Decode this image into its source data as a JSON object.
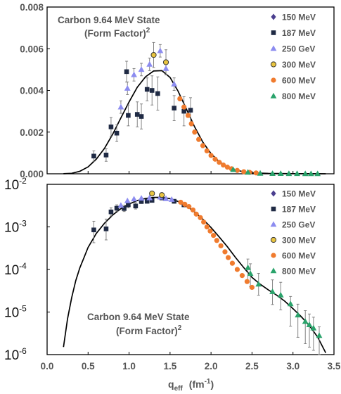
{
  "chart_data": [
    {
      "type": "scatter",
      "title": "Carbon  9.64  MeV State",
      "subtitle": "(Form Factor)",
      "subtitle_sup": "2",
      "xlabel": "q",
      "xlabel_sub": "eff",
      "xlabel_unit": "(fm",
      "xlabel_unit_sup": "-1",
      "xlabel_close": ")",
      "ylabel": "",
      "xlim": [
        0.0,
        3.5
      ],
      "ylim": [
        0.0,
        0.008
      ],
      "yscale": "linear",
      "x_ticks": [
        "0.0",
        "0.5",
        "1.0",
        "1.5",
        "2.0",
        "2.5",
        "3.0",
        "3.5"
      ],
      "y_ticks": [
        "0.000",
        "0.002",
        "0.004",
        "0.006",
        "0.008"
      ],
      "legend_position": "top-right",
      "grid": false,
      "series": [
        {
          "name": "150 MeV",
          "marker": "diamond",
          "color": "#4b3f8f",
          "points": []
        },
        {
          "name": "187 MeV",
          "marker": "square",
          "color": "#1f2a44",
          "points": [
            [
              0.57,
              0.00085,
              0.00025
            ],
            [
              0.72,
              0.0009,
              0.0003
            ],
            [
              0.78,
              0.00225,
              0.00045
            ],
            [
              0.85,
              0.00195,
              0.0004
            ],
            [
              0.97,
              0.0049,
              0.0005
            ],
            [
              0.99,
              0.0028,
              0.0005
            ],
            [
              1.1,
              0.00285,
              0.0006
            ],
            [
              1.15,
              0.00275,
              0.0006
            ],
            [
              1.22,
              0.00405,
              0.00055
            ],
            [
              1.28,
              0.004,
              0.0007
            ],
            [
              1.35,
              0.00385,
              0.0008
            ],
            [
              1.55,
              0.00315,
              0.0006
            ],
            [
              1.67,
              0.003,
              0.0007
            ],
            [
              1.75,
              0.00305,
              0.0006
            ]
          ]
        },
        {
          "name": "250 GeV",
          "marker": "triangle",
          "color": "#8c8cf0",
          "points": [
            [
              0.9,
              0.0032,
              0.0003
            ],
            [
              0.98,
              0.0041,
              0.0003
            ],
            [
              1.06,
              0.00475,
              0.0003
            ],
            [
              1.15,
              0.005,
              0.0003
            ],
            [
              1.25,
              0.00525,
              0.0003
            ],
            [
              1.38,
              0.0059,
              0.0003
            ],
            [
              1.45,
              0.00505,
              0.0003
            ],
            [
              1.55,
              0.0043,
              0.0003
            ]
          ]
        },
        {
          "name": "300 MeV",
          "marker": "circle",
          "color": "#e8c440",
          "points": [
            [
              1.3,
              0.0057,
              0.0006
            ],
            [
              1.45,
              0.00535,
              0.0006
            ]
          ]
        },
        {
          "name": "600 MeV",
          "marker": "circle",
          "color": "#f07b2e",
          "points": [
            [
              1.62,
              0.0036,
              0.0001
            ],
            [
              1.67,
              0.0032,
              0.0001
            ],
            [
              1.72,
              0.0028,
              0.0001
            ],
            [
              1.76,
              0.0024,
              0.0001
            ],
            [
              1.8,
              0.002,
              0.0001
            ],
            [
              1.85,
              0.00165,
              0.0001
            ],
            [
              1.9,
              0.00135,
              0.0001
            ],
            [
              1.95,
              0.0011,
              8e-05
            ],
            [
              2.0,
              0.00088,
              8e-05
            ],
            [
              2.05,
              0.0007,
              8e-05
            ],
            [
              2.1,
              0.00055,
              8e-05
            ],
            [
              2.15,
              0.00042,
              6e-05
            ],
            [
              2.2,
              0.00032,
              6e-05
            ],
            [
              2.25,
              0.00024,
              5e-05
            ],
            [
              2.32,
              0.00016,
              5e-05
            ],
            [
              2.4,
              0.0001,
              4e-05
            ],
            [
              2.47,
              7e-05,
              4e-05
            ],
            [
              2.55,
              4e-05,
              3e-05
            ]
          ]
        },
        {
          "name": "800 MeV",
          "marker": "triangle",
          "color": "#2aa36b",
          "points": [
            [
              2.27,
              0.0002,
              5e-05
            ],
            [
              2.45,
              7e-05,
              3e-05
            ],
            [
              2.6,
              2e-05,
              2e-05
            ],
            [
              2.75,
              1e-05,
              1e-05
            ],
            [
              2.85,
              1e-05,
              1e-05
            ],
            [
              2.95,
              5e-06,
              1e-05
            ],
            [
              3.05,
              4e-06,
              1e-05
            ],
            [
              3.15,
              2e-06,
              1e-05
            ],
            [
              3.22,
              2e-06,
              1e-05
            ],
            [
              3.3,
              1e-06,
              1e-05
            ]
          ]
        }
      ],
      "curve": {
        "x": [
          0.2,
          0.3,
          0.4,
          0.5,
          0.6,
          0.7,
          0.8,
          0.9,
          1.0,
          1.1,
          1.2,
          1.3,
          1.4,
          1.5,
          1.6,
          1.7,
          1.8,
          1.9,
          2.0,
          2.1,
          2.2,
          2.3,
          2.4,
          2.5,
          2.6,
          2.7,
          2.8,
          3.0,
          3.2,
          3.4
        ],
        "y": [
          2e-06,
          2.5e-05,
          0.00012,
          0.00033,
          0.0007,
          0.00122,
          0.0019,
          0.00268,
          0.00345,
          0.00415,
          0.00465,
          0.00493,
          0.00495,
          0.00462,
          0.00395,
          0.0031,
          0.00225,
          0.00152,
          0.00097,
          0.00058,
          0.00033,
          0.00018,
          9.5e-05,
          5.2e-05,
          2.9e-05,
          1.8e-05,
          1.2e-05,
          6e-06,
          3e-06,
          1e-06
        ]
      }
    },
    {
      "type": "scatter",
      "title": "Carbon  9.64  MeV State",
      "subtitle": "(Form Factor)",
      "subtitle_sup": "2",
      "xlabel": "q",
      "xlabel_sub": "eff",
      "xlabel_unit": "(fm",
      "xlabel_unit_sup": "-1",
      "xlabel_close": ")",
      "ylabel": "",
      "xlim": [
        0.0,
        3.5
      ],
      "ylim": [
        1e-06,
        0.01
      ],
      "yscale": "log",
      "x_ticks": [
        "0.0",
        "0.5",
        "1.0",
        "1.5",
        "2.0",
        "2.5",
        "3.0",
        "3.5"
      ],
      "y_ticks": [
        {
          "base": "10",
          "exp": "-2"
        },
        {
          "base": "10",
          "exp": "-3"
        },
        {
          "base": "10",
          "exp": "-4"
        },
        {
          "base": "10",
          "exp": "-5"
        },
        {
          "base": "10",
          "exp": "-6"
        }
      ],
      "legend_position": "top-right",
      "grid": false,
      "series": [
        {
          "name": "150 MeV",
          "marker": "diamond",
          "color": "#4b3f8f",
          "points": []
        },
        {
          "name": "187 MeV",
          "marker": "square",
          "color": "#1f2a44",
          "points": [
            [
              0.57,
              0.00085,
              0.5,
              1.6
            ],
            [
              0.72,
              0.0009,
              0.55,
              1.7
            ],
            [
              0.78,
              0.00225,
              0.8,
              1.25
            ],
            [
              0.85,
              0.00275,
              0.85,
              1.2
            ],
            [
              0.94,
              0.0027,
              0.85,
              1.2
            ],
            [
              0.99,
              0.0033,
              0.85,
              1.2
            ],
            [
              1.08,
              0.0031,
              0.85,
              1.2
            ],
            [
              1.15,
              0.00395,
              0.9,
              1.1
            ],
            [
              1.22,
              0.004,
              0.9,
              1.1
            ],
            [
              1.28,
              0.0042,
              0.9,
              1.1
            ],
            [
              1.4,
              0.0048,
              0.9,
              1.1
            ],
            [
              1.55,
              0.004,
              0.9,
              1.1
            ],
            [
              1.67,
              0.0033,
              0.9,
              1.1
            ]
          ]
        },
        {
          "name": "250 GeV",
          "marker": "triangle",
          "color": "#8c8cf0",
          "points": [
            [
              0.9,
              0.0032
            ],
            [
              0.98,
              0.0041
            ],
            [
              1.06,
              0.0045
            ],
            [
              1.15,
              0.0047
            ],
            [
              1.25,
              0.0048
            ],
            [
              1.38,
              0.005
            ],
            [
              1.45,
              0.0046
            ],
            [
              1.52,
              0.0044
            ]
          ]
        },
        {
          "name": "300 MeV",
          "marker": "circle",
          "color": "#e8c440",
          "points": [
            [
              1.28,
              0.0061
            ],
            [
              1.4,
              0.0056
            ]
          ]
        },
        {
          "name": "600 MeV",
          "marker": "circle",
          "color": "#f07b2e",
          "points": [
            [
              1.63,
              0.0038
            ],
            [
              1.68,
              0.0034
            ],
            [
              1.73,
              0.003
            ],
            [
              1.78,
              0.0025
            ],
            [
              1.82,
              0.002
            ],
            [
              1.87,
              0.00165
            ],
            [
              1.91,
              0.0013
            ],
            [
              1.95,
              0.001
            ],
            [
              1.99,
              0.0008
            ],
            [
              2.03,
              0.00063
            ],
            [
              2.07,
              0.00048
            ],
            [
              2.12,
              0.00036
            ],
            [
              2.17,
              0.00026
            ],
            [
              2.21,
              0.00019
            ],
            [
              2.26,
              0.00014
            ],
            [
              2.32,
              0.0001
            ],
            [
              2.38,
              7.2e-05
            ],
            [
              2.44,
              5.2e-05
            ],
            [
              2.5,
              3.8e-05
            ]
          ]
        },
        {
          "name": "800 MeV",
          "marker": "triangle",
          "color": "#2aa36b",
          "points": [
            [
              2.45,
              0.00011,
              0.45,
              1.6
            ],
            [
              2.48,
              8e-05,
              0.5,
              1.7
            ],
            [
              2.58,
              4.5e-05,
              0.55,
              1.8
            ],
            [
              2.75,
              3e-05,
              0.5,
              1.9
            ],
            [
              2.85,
              2.5e-05,
              0.45,
              2.0
            ],
            [
              2.97,
              1.55e-05,
              0.3,
              1.5
            ],
            [
              3.06,
              8.5e-06,
              0.3,
              1.8
            ],
            [
              3.15,
              6e-06,
              0.3,
              1.8
            ],
            [
              3.2,
              5e-06,
              0.3,
              1.8
            ],
            [
              3.25,
              4.2e-06,
              0.3,
              1.8
            ],
            [
              3.32,
              2.8e-06,
              0.3,
              1.6
            ]
          ]
        }
      ],
      "curve": {
        "x": [
          0.2,
          0.25,
          0.3,
          0.35,
          0.4,
          0.45,
          0.5,
          0.6,
          0.7,
          0.8,
          0.9,
          1.0,
          1.1,
          1.2,
          1.3,
          1.4,
          1.5,
          1.6,
          1.7,
          1.8,
          1.9,
          2.0,
          2.1,
          2.2,
          2.3,
          2.4,
          2.5,
          2.6,
          2.7,
          2.8,
          2.9,
          3.0,
          3.1,
          3.2,
          3.3,
          3.4
        ],
        "y": [
          1.5e-06,
          7e-06,
          2.2e-05,
          5.5e-05,
          0.00011,
          0.00019,
          0.00033,
          0.0007,
          0.00122,
          0.0019,
          0.00268,
          0.00345,
          0.00415,
          0.00465,
          0.00493,
          0.00495,
          0.00462,
          0.00395,
          0.0031,
          0.00225,
          0.00152,
          0.00097,
          0.00058,
          0.00034,
          0.00019,
          0.00011,
          6.5e-05,
          4.5e-05,
          3.3e-05,
          2.5e-05,
          1.8e-05,
          1.2e-05,
          7.8e-06,
          4.8e-06,
          2.6e-06,
          1.1e-06
        ]
      }
    }
  ]
}
